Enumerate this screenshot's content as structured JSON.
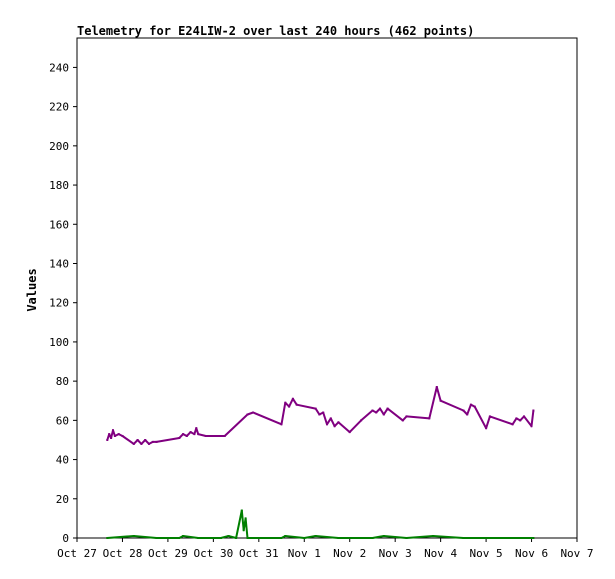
{
  "chart_data": {
    "type": "line",
    "title": "Telemetry for E24LIW-2 over last 240 hours (462 points)",
    "xlabel": "",
    "ylabel": "Values",
    "ylim": [
      0,
      255
    ],
    "xlim": [
      "Oct 27",
      "Nov 7"
    ],
    "grid": false,
    "y_ticks": [
      0,
      20,
      40,
      60,
      80,
      100,
      120,
      140,
      160,
      180,
      200,
      220,
      240
    ],
    "x_ticks": [
      "Oct 27",
      "Oct 28",
      "Oct 29",
      "Oct 30",
      "Oct 31",
      "Nov 1",
      "Nov 2",
      "Nov 3",
      "Nov 4",
      "Nov 5",
      "Nov 6",
      "Nov 7"
    ],
    "series": [
      {
        "color": "#800080",
        "points": [
          [
            "Oct 27 16:00",
            50
          ],
          [
            "Oct 27 17:00",
            53
          ],
          [
            "Oct 27 18:00",
            51
          ],
          [
            "Oct 27 19:00",
            55
          ],
          [
            "Oct 27 20:00",
            52
          ],
          [
            "Oct 27 22:00",
            53
          ],
          [
            "Oct 28 00:00",
            52
          ],
          [
            "Oct 28 06:00",
            48
          ],
          [
            "Oct 28 08:00",
            50
          ],
          [
            "Oct 28 10:00",
            48
          ],
          [
            "Oct 28 12:00",
            50
          ],
          [
            "Oct 28 14:00",
            48
          ],
          [
            "Oct 28 16:00",
            49
          ],
          [
            "Oct 28 18:00",
            49
          ],
          [
            "Oct 29 06:00",
            51
          ],
          [
            "Oct 29 08:00",
            53
          ],
          [
            "Oct 29 10:00",
            52
          ],
          [
            "Oct 29 12:00",
            54
          ],
          [
            "Oct 29 14:00",
            53
          ],
          [
            "Oct 29 15:00",
            56
          ],
          [
            "Oct 29 16:00",
            53
          ],
          [
            "Oct 29 20:00",
            52
          ],
          [
            "Oct 30 06:00",
            52
          ],
          [
            "Oct 30 18:00",
            63
          ],
          [
            "Oct 30 21:00",
            64
          ],
          [
            "Oct 31 12:00",
            58
          ],
          [
            "Oct 31 14:00",
            69
          ],
          [
            "Oct 31 16:00",
            67
          ],
          [
            "Oct 31 18:00",
            71
          ],
          [
            "Oct 31 20:00",
            68
          ],
          [
            "Nov 1 06:00",
            66
          ],
          [
            "Nov 1 08:00",
            63
          ],
          [
            "Nov 1 10:00",
            64
          ],
          [
            "Nov 1 12:00",
            58
          ],
          [
            "Nov 1 14:00",
            61
          ],
          [
            "Nov 1 16:00",
            57
          ],
          [
            "Nov 1 18:00",
            59
          ],
          [
            "Nov 2 00:00",
            54
          ],
          [
            "Nov 2 06:00",
            60
          ],
          [
            "Nov 2 12:00",
            65
          ],
          [
            "Nov 2 14:00",
            64
          ],
          [
            "Nov 2 16:00",
            66
          ],
          [
            "Nov 2 18:00",
            63
          ],
          [
            "Nov 2 20:00",
            66
          ],
          [
            "Nov 3 04:00",
            60
          ],
          [
            "Nov 3 06:00",
            62
          ],
          [
            "Nov 3 18:00",
            61
          ],
          [
            "Nov 3 22:00",
            77
          ],
          [
            "Nov 4 00:00",
            70
          ],
          [
            "Nov 4 12:00",
            65
          ],
          [
            "Nov 4 14:00",
            63
          ],
          [
            "Nov 4 16:00",
            68
          ],
          [
            "Nov 4 18:00",
            67
          ],
          [
            "Nov 5 00:00",
            56
          ],
          [
            "Nov 5 02:00",
            62
          ],
          [
            "Nov 5 14:00",
            58
          ],
          [
            "Nov 5 16:00",
            61
          ],
          [
            "Nov 5 18:00",
            60
          ],
          [
            "Nov 5 20:00",
            62
          ],
          [
            "Nov 6 00:00",
            57
          ],
          [
            "Nov 6 01:00",
            65
          ]
        ]
      },
      {
        "color": "#008000",
        "points": [
          [
            "Oct 27 16:00",
            0
          ],
          [
            "Oct 28 06:00",
            1
          ],
          [
            "Oct 28 18:00",
            0
          ],
          [
            "Oct 29 06:00",
            0
          ],
          [
            "Oct 29 08:00",
            1
          ],
          [
            "Oct 29 16:00",
            0
          ],
          [
            "Oct 30 04:00",
            0
          ],
          [
            "Oct 30 08:00",
            1
          ],
          [
            "Oct 30 12:00",
            0
          ],
          [
            "Oct 30 15:00",
            14
          ],
          [
            "Oct 30 16:00",
            4
          ],
          [
            "Oct 30 17:00",
            10
          ],
          [
            "Oct 30 18:00",
            0
          ],
          [
            "Oct 31 12:00",
            0
          ],
          [
            "Oct 31 14:00",
            1
          ],
          [
            "Nov 1 00:00",
            0
          ],
          [
            "Nov 1 06:00",
            1
          ],
          [
            "Nov 1 18:00",
            0
          ],
          [
            "Nov 2 12:00",
            0
          ],
          [
            "Nov 2 18:00",
            1
          ],
          [
            "Nov 3 06:00",
            0
          ],
          [
            "Nov 3 20:00",
            1
          ],
          [
            "Nov 4 12:00",
            0
          ],
          [
            "Nov 5 12:00",
            0
          ],
          [
            "Nov 6 01:00",
            0
          ]
        ]
      }
    ]
  }
}
